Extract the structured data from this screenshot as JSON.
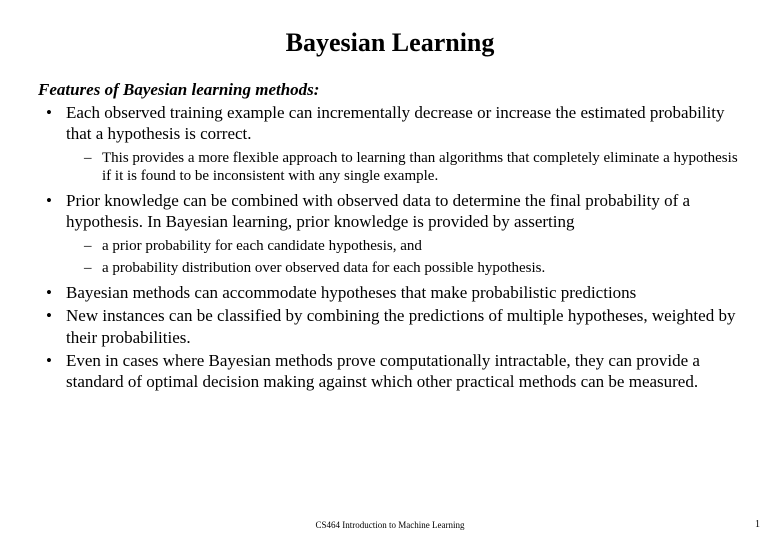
{
  "title": "Bayesian Learning",
  "sectionHeading": "Features of Bayesian learning methods:",
  "bullets": [
    {
      "text": "Each observed training example can incrementally decrease or increase the estimated probability that a hypothesis is correct.",
      "sub": [
        "This provides a more flexible approach to learning than algorithms that completely eliminate a hypothesis if it is found to be inconsistent with any single example."
      ]
    },
    {
      "text": "Prior knowledge can be combined with observed data to determine the final probability of a hypothesis. In Bayesian learning, prior knowledge is provided by asserting",
      "sub": [
        "a prior probability for each candidate hypothesis, and",
        "a probability distribution over observed data for each possible hypothesis."
      ]
    },
    {
      "text": "Bayesian methods can accommodate hypotheses that make probabilistic predictions",
      "sub": []
    },
    {
      "text": "New instances can be classified by combining the predictions of multiple hypotheses, weighted by their probabilities.",
      "sub": []
    },
    {
      "text": "Even in cases where Bayesian methods prove computationally intractable, they can provide a standard of optimal decision making against which other practical methods can be measured.",
      "sub": []
    }
  ],
  "footer": "CS464 Introduction to Machine Learning",
  "pageNumber": "1"
}
